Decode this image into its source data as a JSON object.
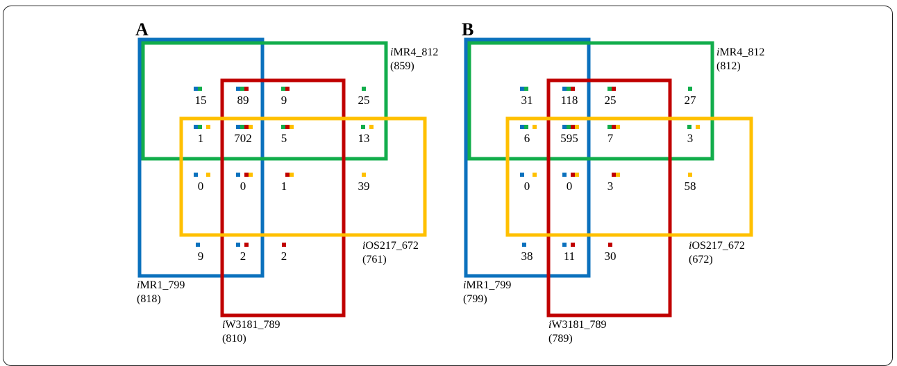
{
  "colors": {
    "iMR1_799": "#0b71bd",
    "iMR4_812": "#12ad4b",
    "iW3181_789": "#c00000",
    "iOS217_672": "#ffc000"
  },
  "panels": [
    {
      "letter": "A",
      "labels": {
        "iMR1_799": {
          "prefix": "i",
          "name": "MR1_799",
          "count": "(818)"
        },
        "iMR4_812": {
          "prefix": "i",
          "name": "MR4_812",
          "count": "(859)"
        },
        "iW3181_789": {
          "prefix": "i",
          "name": "W3181_789",
          "count": "(810)"
        },
        "iOS217_672": {
          "prefix": "i",
          "name": "OS217_672",
          "count": "(761)"
        }
      },
      "regions": [
        {
          "sets": [
            "iMR1_799",
            "iMR4_812"
          ],
          "value": "15"
        },
        {
          "sets": [
            "iMR1_799",
            "iMR4_812",
            "iW3181_789"
          ],
          "value": "89"
        },
        {
          "sets": [
            "iMR4_812",
            "iW3181_789"
          ],
          "value": "9"
        },
        {
          "sets": [
            "iMR4_812"
          ],
          "value": "25"
        },
        {
          "sets": [
            "iMR1_799",
            "iMR4_812",
            "iOS217_672"
          ],
          "value": "1"
        },
        {
          "sets": [
            "iMR1_799",
            "iMR4_812",
            "iW3181_789",
            "iOS217_672"
          ],
          "value": "702"
        },
        {
          "sets": [
            "iMR4_812",
            "iW3181_789",
            "iOS217_672"
          ],
          "value": "5"
        },
        {
          "sets": [
            "iMR4_812",
            "iOS217_672"
          ],
          "value": "13"
        },
        {
          "sets": [
            "iMR1_799",
            "iOS217_672"
          ],
          "value": "0"
        },
        {
          "sets": [
            "iMR1_799",
            "iW3181_789",
            "iOS217_672"
          ],
          "value": "0"
        },
        {
          "sets": [
            "iW3181_789",
            "iOS217_672"
          ],
          "value": "1"
        },
        {
          "sets": [
            "iOS217_672"
          ],
          "value": "39"
        },
        {
          "sets": [
            "iMR1_799"
          ],
          "value": "9"
        },
        {
          "sets": [
            "iMR1_799",
            "iW3181_789"
          ],
          "value": "2"
        },
        {
          "sets": [
            "iW3181_789"
          ],
          "value": "2"
        }
      ]
    },
    {
      "letter": "B",
      "labels": {
        "iMR1_799": {
          "prefix": "i",
          "name": "MR1_799",
          "count": "(799)"
        },
        "iMR4_812": {
          "prefix": "i",
          "name": "MR4_812",
          "count": "(812)"
        },
        "iW3181_789": {
          "prefix": "i",
          "name": "W3181_789",
          "count": "(789)"
        },
        "iOS217_672": {
          "prefix": "i",
          "name": "OS217_672",
          "count": "(672)"
        }
      },
      "regions": [
        {
          "sets": [
            "iMR1_799",
            "iMR4_812"
          ],
          "value": "31"
        },
        {
          "sets": [
            "iMR1_799",
            "iMR4_812",
            "iW3181_789"
          ],
          "value": "118"
        },
        {
          "sets": [
            "iMR4_812",
            "iW3181_789"
          ],
          "value": "25"
        },
        {
          "sets": [
            "iMR4_812"
          ],
          "value": "27"
        },
        {
          "sets": [
            "iMR1_799",
            "iMR4_812",
            "iOS217_672"
          ],
          "value": "6"
        },
        {
          "sets": [
            "iMR1_799",
            "iMR4_812",
            "iW3181_789",
            "iOS217_672"
          ],
          "value": "595"
        },
        {
          "sets": [
            "iMR4_812",
            "iW3181_789",
            "iOS217_672"
          ],
          "value": "7"
        },
        {
          "sets": [
            "iMR4_812",
            "iOS217_672"
          ],
          "value": "3"
        },
        {
          "sets": [
            "iMR1_799",
            "iOS217_672"
          ],
          "value": "0"
        },
        {
          "sets": [
            "iMR1_799",
            "iW3181_789",
            "iOS217_672"
          ],
          "value": "0"
        },
        {
          "sets": [
            "iW3181_789",
            "iOS217_672"
          ],
          "value": "3"
        },
        {
          "sets": [
            "iOS217_672"
          ],
          "value": "58"
        },
        {
          "sets": [
            "iMR1_799"
          ],
          "value": "38"
        },
        {
          "sets": [
            "iMR1_799",
            "iW3181_789"
          ],
          "value": "11"
        },
        {
          "sets": [
            "iW3181_789"
          ],
          "value": "30"
        }
      ]
    }
  ]
}
